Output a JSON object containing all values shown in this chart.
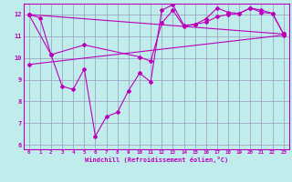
{
  "xlabel": "Windchill (Refroidissement éolien,°C)",
  "bg_color": "#c0ecec",
  "line_color": "#bb00bb",
  "grid_color": "#9999bb",
  "ylim": [
    5.8,
    12.5
  ],
  "xlim": [
    -0.5,
    23.5
  ],
  "yticks": [
    6,
    7,
    8,
    9,
    10,
    11,
    12
  ],
  "xticks": [
    0,
    1,
    2,
    3,
    4,
    5,
    6,
    7,
    8,
    9,
    10,
    11,
    12,
    13,
    14,
    15,
    16,
    17,
    18,
    19,
    20,
    21,
    22,
    23
  ],
  "line1_x": [
    0,
    1,
    2,
    3,
    4,
    5,
    6,
    7,
    8,
    9,
    10,
    11,
    12,
    13,
    14,
    15,
    16,
    17,
    18,
    19,
    20,
    21,
    22,
    23
  ],
  "line1_y": [
    12.0,
    11.85,
    10.15,
    8.7,
    8.55,
    9.5,
    6.4,
    7.3,
    7.5,
    8.5,
    9.3,
    8.9,
    12.2,
    12.45,
    11.5,
    11.55,
    11.8,
    12.3,
    12.1,
    12.05,
    12.3,
    12.1,
    12.05,
    11.1
  ],
  "line2_x": [
    0,
    23
  ],
  "line2_y": [
    12.0,
    11.1
  ],
  "line3_x": [
    0,
    23
  ],
  "line3_y": [
    9.7,
    11.05
  ],
  "line4_x": [
    0,
    2,
    5,
    10,
    11,
    12,
    13,
    14,
    15,
    16,
    17,
    18,
    19,
    20,
    21,
    22,
    23
  ],
  "line4_y": [
    12.0,
    10.15,
    10.6,
    10.05,
    9.85,
    11.6,
    12.2,
    11.45,
    11.55,
    11.65,
    11.9,
    12.0,
    12.05,
    12.3,
    12.2,
    12.05,
    11.1
  ]
}
